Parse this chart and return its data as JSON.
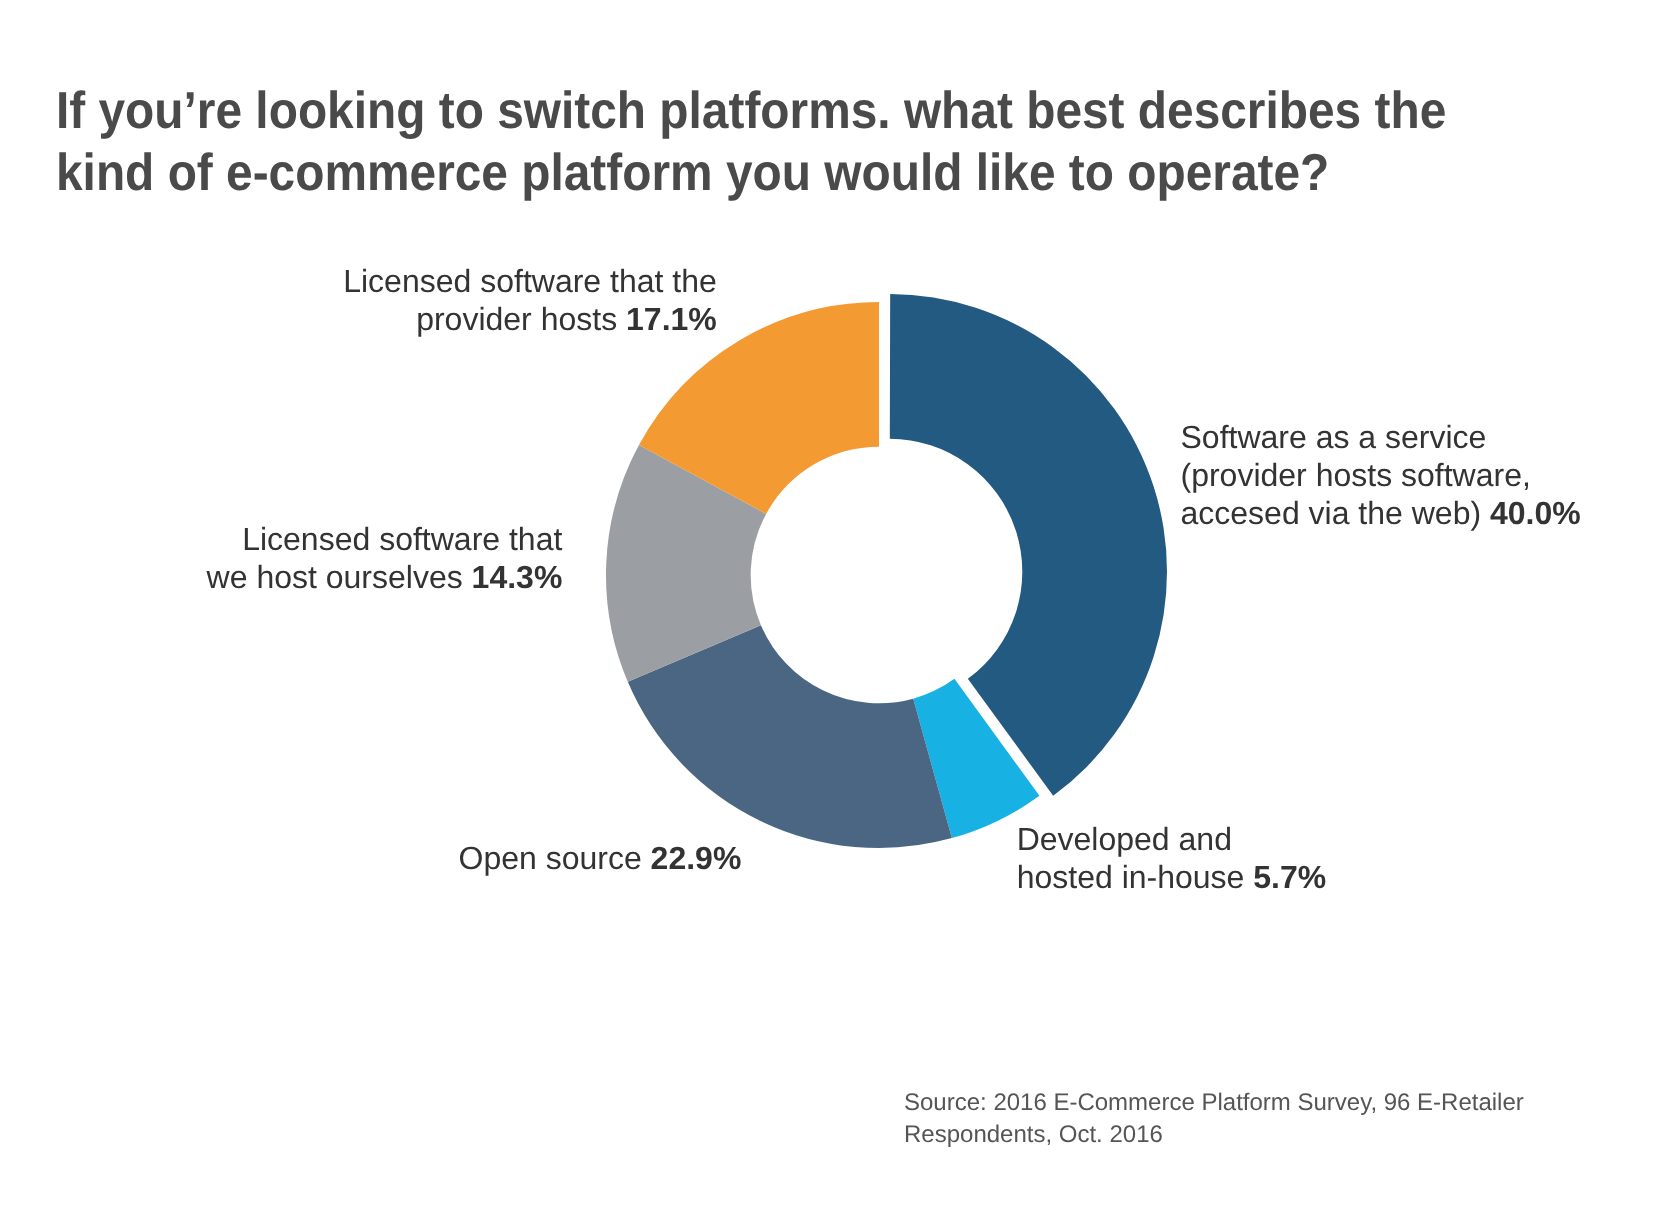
{
  "chart_data": {
    "type": "donut",
    "title": "If you’re looking to switch platforms. what best describes the kind of e-commerce platform you would like to operate?",
    "categories": [
      "Software as a service\n(provider hosts software,\naccesed via the web)",
      "Developed and\nhosted in-house",
      "Open source",
      "Licensed software that\nwe host ourselves",
      "Licensed software that the\nprovider hosts"
    ],
    "values": [
      40.0,
      5.7,
      22.9,
      14.3,
      17.1
    ],
    "value_labels": [
      "40.0%",
      "5.7%",
      "22.9%",
      "14.3%",
      "17.1%"
    ],
    "colors": [
      "#235a81",
      "#17b1e3",
      "#4b6683",
      "#9b9ea3",
      "#f39a33"
    ],
    "legend": false,
    "annotations": [
      "Source: 2016 E-Commerce Platform Survey, 96 E-Retailer Respondents, Oct. 2016"
    ]
  }
}
